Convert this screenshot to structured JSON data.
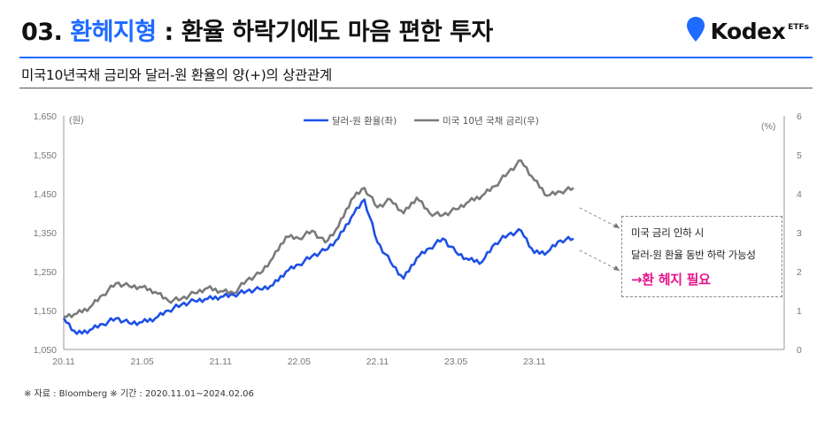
{
  "header": {
    "title_num": "03.",
    "title_accent": "환헤지형",
    "title_rest": " : 환율 하락기에도 마음 편한 투자",
    "subtitle": "미국10년국채 금리와 달러-원 환율의 양(+)의 상관관계"
  },
  "logo": {
    "text": "Kodex",
    "sub": "ETFs",
    "brand_color": "#1e6bff"
  },
  "annotation": {
    "line1": "미국 금리 인하 시",
    "line2": "달러-원 환율 동반 하락 가능성",
    "emphasis": "→환 헤지 필요",
    "emphasis_color": "#e6148c"
  },
  "footnote": "※ 자료 : Bloomberg ※ 기간 : 2020.11.01~2024.02.06",
  "chart_data": {
    "type": "line",
    "title": "",
    "left_axis": {
      "unit": "(원)",
      "range": [
        1050,
        1650
      ],
      "ticks": [
        "1,050",
        "1,150",
        "1,250",
        "1,350",
        "1,450",
        "1,550",
        "1,650"
      ]
    },
    "right_axis": {
      "unit": "(%)",
      "range": [
        0,
        6
      ],
      "ticks": [
        "0",
        "1",
        "2",
        "3",
        "4",
        "5",
        "6"
      ]
    },
    "x_axis": {
      "ticks": [
        "20.11",
        "21.05",
        "21.11",
        "22.05",
        "22.11",
        "23.05",
        "23.11"
      ],
      "range": [
        "2020.11",
        "2024.02"
      ]
    },
    "grid": false,
    "legend_position": "top-center",
    "series": [
      {
        "name": "달러-원 환율(좌)",
        "axis": "left",
        "color": "#1e50e6",
        "x": [
          "2020-11",
          "2020-12",
          "2021-01",
          "2021-02",
          "2021-03",
          "2021-04",
          "2021-05",
          "2021-06",
          "2021-07",
          "2021-08",
          "2021-09",
          "2021-10",
          "2021-11",
          "2021-12",
          "2022-01",
          "2022-02",
          "2022-03",
          "2022-04",
          "2022-05",
          "2022-06",
          "2022-07",
          "2022-08",
          "2022-09",
          "2022-10",
          "2022-11",
          "2022-12",
          "2023-01",
          "2023-02",
          "2023-03",
          "2023-04",
          "2023-05",
          "2023-06",
          "2023-07",
          "2023-08",
          "2023-09",
          "2023-10",
          "2023-11",
          "2023-12",
          "2024-01",
          "2024-02"
        ],
        "values": [
          1130,
          1090,
          1100,
          1115,
          1130,
          1118,
          1120,
          1130,
          1150,
          1165,
          1175,
          1180,
          1185,
          1190,
          1200,
          1205,
          1215,
          1250,
          1268,
          1290,
          1305,
          1335,
          1390,
          1435,
          1325,
          1275,
          1232,
          1285,
          1310,
          1335,
          1300,
          1280,
          1275,
          1322,
          1345,
          1355,
          1298,
          1300,
          1330,
          1335
        ]
      },
      {
        "name": "미국 10년 국채 금리(우)",
        "axis": "right",
        "color": "#7a7a7a",
        "x": [
          "2020-11",
          "2020-12",
          "2021-01",
          "2021-02",
          "2021-03",
          "2021-04",
          "2021-05",
          "2021-06",
          "2021-07",
          "2021-08",
          "2021-09",
          "2021-10",
          "2021-11",
          "2021-12",
          "2022-01",
          "2022-02",
          "2022-03",
          "2022-04",
          "2022-05",
          "2022-06",
          "2022-07",
          "2022-08",
          "2022-09",
          "2022-10",
          "2022-11",
          "2022-12",
          "2023-01",
          "2023-02",
          "2023-03",
          "2023-04",
          "2023-05",
          "2023-06",
          "2023-07",
          "2023-08",
          "2023-09",
          "2023-10",
          "2023-11",
          "2023-12",
          "2024-01",
          "2024-02"
        ],
        "values": [
          0.85,
          0.92,
          1.08,
          1.4,
          1.7,
          1.63,
          1.6,
          1.48,
          1.25,
          1.3,
          1.45,
          1.58,
          1.5,
          1.45,
          1.78,
          1.95,
          2.35,
          2.9,
          2.85,
          3.05,
          2.75,
          3.15,
          3.85,
          4.15,
          3.65,
          3.85,
          3.5,
          3.9,
          3.5,
          3.45,
          3.6,
          3.8,
          3.95,
          4.2,
          4.55,
          4.85,
          4.35,
          3.95,
          4.05,
          4.15
        ]
      }
    ]
  }
}
